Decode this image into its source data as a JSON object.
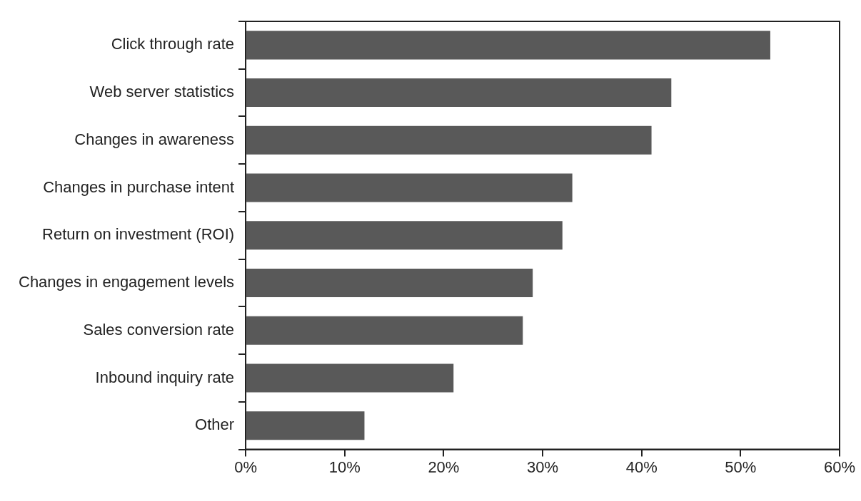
{
  "chart_data": {
    "type": "bar",
    "orientation": "horizontal",
    "categories": [
      "Click through rate",
      "Web server statistics",
      "Changes in awareness",
      "Changes in purchase intent",
      "Return on investment (ROI)",
      "Changes in engagement levels",
      "Sales conversion rate",
      "Inbound inquiry rate",
      "Other"
    ],
    "values": [
      53,
      43,
      41,
      33,
      32,
      29,
      28,
      21,
      12
    ],
    "color": "#595959",
    "xlim": [
      0,
      60
    ],
    "xticks": [
      {
        "value": 0,
        "label": "0%"
      },
      {
        "value": 10,
        "label": "10%"
      },
      {
        "value": 20,
        "label": "20%"
      },
      {
        "value": 30,
        "label": "30%"
      },
      {
        "value": 40,
        "label": "40%"
      },
      {
        "value": 50,
        "label": "50%"
      },
      {
        "value": 60,
        "label": "60%"
      }
    ],
    "grid": false,
    "legend": false
  }
}
